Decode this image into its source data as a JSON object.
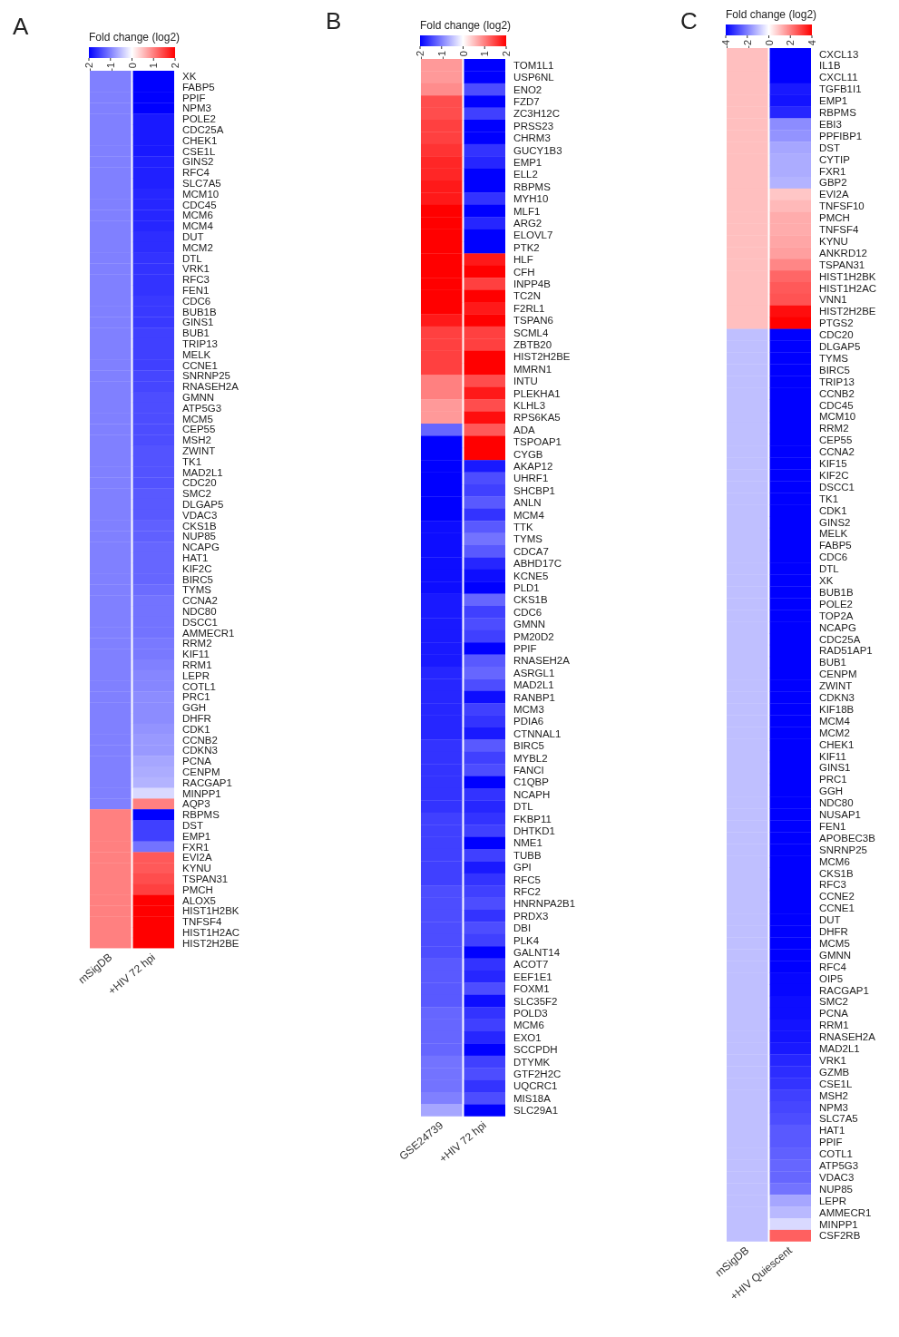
{
  "chart_data": [
    {
      "type": "heatmap",
      "title": "A",
      "clabel": "Fold change (log2)",
      "clim": [
        -2,
        2
      ],
      "cticks": [
        -2,
        -1,
        0,
        1,
        2
      ],
      "categories": [
        "mSigDB",
        "+HIV 72 hpi"
      ],
      "y_categories": [
        "XK",
        "FABP5",
        "PPIF",
        "NPM3",
        "POLE2",
        "CDC25A",
        "CHEK1",
        "CSE1L",
        "GINS2",
        "RFC4",
        "SLC7A5",
        "MCM10",
        "CDC45",
        "MCM6",
        "MCM4",
        "DUT",
        "MCM2",
        "DTL",
        "VRK1",
        "RFC3",
        "FEN1",
        "CDC6",
        "BUB1B",
        "GINS1",
        "BUB1",
        "TRIP13",
        "MELK",
        "CCNE1",
        "SNRNP25",
        "RNASEH2A",
        "GMNN",
        "ATP5G3",
        "MCM5",
        "CEP55",
        "MSH2",
        "ZWINT",
        "TK1",
        "MAD2L1",
        "CDC20",
        "SMC2",
        "DLGAP5",
        "VDAC3",
        "CKS1B",
        "NUP85",
        "NCAPG",
        "HAT1",
        "KIF2C",
        "BIRC5",
        "TYMS",
        "CCNA2",
        "NDC80",
        "DSCC1",
        "AMMECR1",
        "RRM2",
        "KIF11",
        "RRM1",
        "LEPR",
        "COTL1",
        "PRC1",
        "GGH",
        "DHFR",
        "CDK1",
        "CCNB2",
        "CDKN3",
        "PCNA",
        "CENPM",
        "RACGAP1",
        "MINPP1",
        "AQP3",
        "RBPMS",
        "DST",
        "EMP1",
        "FXR1",
        "EVI2A",
        "KYNU",
        "TSPAN31",
        "PMCH",
        "ALOX5",
        "HIST1H2BK",
        "TNFSF4",
        "HIST1H2AC",
        "HIST2H2BE"
      ],
      "cells": [
        [
          -1,
          -2
        ],
        [
          -1,
          -2
        ],
        [
          -1,
          -2
        ],
        [
          -1,
          -2
        ],
        [
          -1,
          -1.8
        ],
        [
          -1,
          -1.8
        ],
        [
          -1,
          -1.8
        ],
        [
          -1,
          -1.8
        ],
        [
          -1,
          -1.75
        ],
        [
          -1,
          -1.75
        ],
        [
          -1,
          -1.75
        ],
        [
          -1,
          -1.7
        ],
        [
          -1,
          -1.7
        ],
        [
          -1,
          -1.7
        ],
        [
          -1,
          -1.7
        ],
        [
          -1,
          -1.65
        ],
        [
          -1,
          -1.65
        ],
        [
          -1,
          -1.6
        ],
        [
          -1,
          -1.6
        ],
        [
          -1,
          -1.6
        ],
        [
          -1,
          -1.6
        ],
        [
          -1,
          -1.55
        ],
        [
          -1,
          -1.55
        ],
        [
          -1,
          -1.55
        ],
        [
          -1,
          -1.5
        ],
        [
          -1,
          -1.5
        ],
        [
          -1,
          -1.5
        ],
        [
          -1,
          -1.5
        ],
        [
          -1,
          -1.45
        ],
        [
          -1,
          -1.45
        ],
        [
          -1,
          -1.4
        ],
        [
          -1,
          -1.4
        ],
        [
          -1,
          -1.4
        ],
        [
          -1,
          -1.4
        ],
        [
          -1,
          -1.4
        ],
        [
          -1,
          -1.35
        ],
        [
          -1,
          -1.35
        ],
        [
          -1,
          -1.35
        ],
        [
          -1,
          -1.35
        ],
        [
          -1,
          -1.3
        ],
        [
          -1,
          -1.3
        ],
        [
          -1,
          -1.3
        ],
        [
          -1,
          -1.25
        ],
        [
          -1,
          -1.25
        ],
        [
          -1,
          -1.2
        ],
        [
          -1,
          -1.2
        ],
        [
          -1,
          -1.2
        ],
        [
          -1,
          -1.2
        ],
        [
          -1,
          -1.15
        ],
        [
          -1,
          -1.1
        ],
        [
          -1,
          -1.1
        ],
        [
          -1,
          -1.1
        ],
        [
          -1,
          -1.1
        ],
        [
          -1,
          -1.05
        ],
        [
          -1,
          -1.05
        ],
        [
          -1,
          -1
        ],
        [
          -1,
          -0.95
        ],
        [
          -1,
          -0.95
        ],
        [
          -1,
          -0.9
        ],
        [
          -1,
          -0.9
        ],
        [
          -1,
          -0.9
        ],
        [
          -1,
          -0.85
        ],
        [
          -1,
          -0.8
        ],
        [
          -1,
          -0.8
        ],
        [
          -1,
          -0.7
        ],
        [
          -1,
          -0.65
        ],
        [
          -1,
          -0.6
        ],
        [
          -1,
          -0.3
        ],
        [
          -1,
          1
        ],
        [
          1,
          -2
        ],
        [
          1,
          -1.5
        ],
        [
          1,
          -1.5
        ],
        [
          1,
          -1.1
        ],
        [
          1,
          1.3
        ],
        [
          1,
          1.3
        ],
        [
          1,
          1.4
        ],
        [
          1,
          1.5
        ],
        [
          1,
          2
        ],
        [
          1,
          2
        ],
        [
          1,
          2
        ],
        [
          1,
          2
        ],
        [
          1,
          2
        ]
      ]
    },
    {
      "type": "heatmap",
      "title": "B",
      "clabel": "Fold change (log2)",
      "clim": [
        -2,
        2
      ],
      "cticks": [
        -2,
        -1,
        0,
        1,
        2
      ],
      "categories": [
        "GSE24739",
        "+HIV 72 hpi"
      ],
      "y_categories": [
        "TOM1L1",
        "USP6NL",
        "ENO2",
        "FZD7",
        "ZC3H12C",
        "PRSS23",
        "CHRM3",
        "GUCY1B3",
        "EMP1",
        "ELL2",
        "RBPMS",
        "MYH10",
        "MLF1",
        "ARG2",
        "ELOVL7",
        "PTK2",
        "HLF",
        "CFH",
        "INPP4B",
        "TC2N",
        "F2RL1",
        "TSPAN6",
        "SCML4",
        "ZBTB20",
        "HIST2H2BE",
        "MMRN1",
        "INTU",
        "PLEKHA1",
        "KLHL3",
        "RPS6KA5",
        "ADA",
        "TSPOAP1",
        "CYGB",
        "AKAP12",
        "UHRF1",
        "SHCBP1",
        "ANLN",
        "MCM4",
        "TTK",
        "TYMS",
        "CDCA7",
        "ABHD17C",
        "KCNE5",
        "PLD1",
        "CKS1B",
        "CDC6",
        "GMNN",
        "PM20D2",
        "PPIF",
        "RNASEH2A",
        "ASRGL1",
        "MAD2L1",
        "RANBP1",
        "MCM3",
        "PDIA6",
        "CTNNAL1",
        "BIRC5",
        "MYBL2",
        "FANCI",
        "C1QBP",
        "NCAPH",
        "DTL",
        "FKBP11",
        "DHTKD1",
        "NME1",
        "TUBB",
        "GPI",
        "RFC5",
        "RFC2",
        "HNRNPA2B1",
        "PRDX3",
        "DBI",
        "PLK4",
        "GALNT14",
        "ACOT7",
        "EEF1E1",
        "FOXM1",
        "SLC35F2",
        "POLD3",
        "MCM6",
        "EXO1",
        "SCCPDH",
        "DTYMK",
        "GTF2H2C",
        "UQCRC1",
        "MIS18A",
        "SLC29A1"
      ],
      "cells": [
        [
          0.8,
          -2
        ],
        [
          0.8,
          -2
        ],
        [
          0.9,
          -1.4
        ],
        [
          1.4,
          -2
        ],
        [
          1.4,
          -1.5
        ],
        [
          1.5,
          -2
        ],
        [
          1.5,
          -2
        ],
        [
          1.6,
          -1.6
        ],
        [
          1.7,
          -1.7
        ],
        [
          1.7,
          -2
        ],
        [
          1.8,
          -2
        ],
        [
          1.8,
          -1.6
        ],
        [
          2,
          -2
        ],
        [
          2,
          -1.7
        ],
        [
          2,
          -2
        ],
        [
          2,
          -2
        ],
        [
          2,
          1.8
        ],
        [
          2,
          2
        ],
        [
          2,
          1.5
        ],
        [
          2,
          2
        ],
        [
          2,
          1.8
        ],
        [
          1.8,
          2
        ],
        [
          1.5,
          1.5
        ],
        [
          1.5,
          1.5
        ],
        [
          1.5,
          2
        ],
        [
          1.5,
          2
        ],
        [
          1,
          1.4
        ],
        [
          1,
          1.8
        ],
        [
          0.8,
          1.4
        ],
        [
          0.8,
          1.9
        ],
        [
          -1.2,
          1.3
        ],
        [
          -2,
          2
        ],
        [
          -2,
          2
        ],
        [
          -2,
          -1.8
        ],
        [
          -2,
          -1.4
        ],
        [
          -2,
          -1.5
        ],
        [
          -2,
          -1.3
        ],
        [
          -2,
          -1.6
        ],
        [
          -1.9,
          -1.3
        ],
        [
          -1.9,
          -1.1
        ],
        [
          -1.9,
          -1.3
        ],
        [
          -1.9,
          -1.7
        ],
        [
          -1.9,
          -1.9
        ],
        [
          -1.9,
          -2
        ],
        [
          -1.8,
          -1.2
        ],
        [
          -1.8,
          -1.5
        ],
        [
          -1.8,
          -1.4
        ],
        [
          -1.8,
          -1.5
        ],
        [
          -1.8,
          -2
        ],
        [
          -1.8,
          -1.3
        ],
        [
          -1.7,
          -1.2
        ],
        [
          -1.7,
          -1.4
        ],
        [
          -1.7,
          -1.9
        ],
        [
          -1.7,
          -1.5
        ],
        [
          -1.7,
          -1.6
        ],
        [
          -1.7,
          -1.8
        ],
        [
          -1.6,
          -1.3
        ],
        [
          -1.6,
          -1.5
        ],
        [
          -1.6,
          -1.4
        ],
        [
          -1.6,
          -2
        ],
        [
          -1.6,
          -1.6
        ],
        [
          -1.6,
          -1.7
        ],
        [
          -1.5,
          -1.6
        ],
        [
          -1.5,
          -1.5
        ],
        [
          -1.5,
          -2
        ],
        [
          -1.5,
          -1.5
        ],
        [
          -1.5,
          -1.8
        ],
        [
          -1.5,
          -1.6
        ],
        [
          -1.4,
          -1.5
        ],
        [
          -1.4,
          -1.4
        ],
        [
          -1.4,
          -1.6
        ],
        [
          -1.4,
          -1.4
        ],
        [
          -1.4,
          -1.5
        ],
        [
          -1.4,
          -2
        ],
        [
          -1.3,
          -1.6
        ],
        [
          -1.3,
          -1.7
        ],
        [
          -1.3,
          -1.4
        ],
        [
          -1.3,
          -1.9
        ],
        [
          -1.2,
          -1.6
        ],
        [
          -1.2,
          -1.5
        ],
        [
          -1.2,
          -1.7
        ],
        [
          -1.2,
          -2
        ],
        [
          -1.1,
          -1.5
        ],
        [
          -1.1,
          -1.4
        ],
        [
          -1.1,
          -1.6
        ],
        [
          -1,
          -1.4
        ],
        [
          -0.7,
          -2
        ]
      ]
    },
    {
      "type": "heatmap",
      "title": "C",
      "clabel": "Fold change (log2)",
      "clim": [
        -4,
        4
      ],
      "cticks": [
        -4,
        -2,
        0,
        2,
        4
      ],
      "categories": [
        "mSigDB",
        "+HIV Quiescent"
      ],
      "y_categories": [
        "CXCL13",
        "IL1B",
        "CXCL11",
        "TGFB1I1",
        "EMP1",
        "RBPMS",
        "EBI3",
        "PPFIBP1",
        "DST",
        "CYTIP",
        "FXR1",
        "GBP2",
        "EVI2A",
        "TNFSF10",
        "PMCH",
        "TNFSF4",
        "KYNU",
        "ANKRD12",
        "TSPAN31",
        "HIST1H2BK",
        "HIST1H2AC",
        "VNN1",
        "HIST2H2BE",
        "PTGS2",
        "CDC20",
        "DLGAP5",
        "TYMS",
        "BIRC5",
        "TRIP13",
        "CCNB2",
        "CDC45",
        "MCM10",
        "RRM2",
        "CEP55",
        "CCNA2",
        "KIF15",
        "KIF2C",
        "DSCC1",
        "TK1",
        "CDK1",
        "GINS2",
        "MELK",
        "FABP5",
        "CDC6",
        "DTL",
        "XK",
        "BUB1B",
        "POLE2",
        "TOP2A",
        "NCAPG",
        "CDC25A",
        "RAD51AP1",
        "BUB1",
        "CENPM",
        "ZWINT",
        "CDKN3",
        "KIF18B",
        "MCM4",
        "MCM2",
        "CHEK1",
        "KIF11",
        "GINS1",
        "PRC1",
        "GGH",
        "NDC80",
        "NUSAP1",
        "FEN1",
        "APOBEC3B",
        "SNRNP25",
        "MCM6",
        "CKS1B",
        "RFC3",
        "CCNE2",
        "CCNE1",
        "DUT",
        "DHFR",
        "MCM5",
        "GMNN",
        "RFC4",
        "OIP5",
        "RACGAP1",
        "SMC2",
        "PCNA",
        "RRM1",
        "RNASEH2A",
        "MAD2L1",
        "VRK1",
        "GZMB",
        "CSE1L",
        "MSH2",
        "NPM3",
        "SLC7A5",
        "HAT1",
        "PPIF",
        "COTL1",
        "ATP5G3",
        "VDAC3",
        "NUP85",
        "LEPR",
        "AMMECR1",
        "MINPP1",
        "CSF2RB"
      ],
      "cells": [
        [
          1,
          -4
        ],
        [
          1,
          -4
        ],
        [
          1,
          -4
        ],
        [
          1,
          -3.6
        ],
        [
          1,
          -3.7
        ],
        [
          1,
          -3.4
        ],
        [
          1,
          -1.8
        ],
        [
          1,
          -1.7
        ],
        [
          1,
          -1.4
        ],
        [
          1,
          -1.3
        ],
        [
          1,
          -1.3
        ],
        [
          1,
          -1.2
        ],
        [
          1,
          0.9
        ],
        [
          1,
          1.1
        ],
        [
          1,
          1.3
        ],
        [
          1,
          1.3
        ],
        [
          1,
          1.4
        ],
        [
          1,
          1.5
        ],
        [
          1,
          1.9
        ],
        [
          1,
          2.4
        ],
        [
          1,
          2.6
        ],
        [
          1,
          2.7
        ],
        [
          1,
          3.8
        ],
        [
          1,
          4
        ],
        [
          -1,
          -4
        ],
        [
          -1,
          -4
        ],
        [
          -1,
          -4
        ],
        [
          -1,
          -4
        ],
        [
          -1,
          -4
        ],
        [
          -1,
          -4
        ],
        [
          -1,
          -4
        ],
        [
          -1,
          -4
        ],
        [
          -1,
          -4
        ],
        [
          -1,
          -4
        ],
        [
          -1,
          -4
        ],
        [
          -1,
          -4
        ],
        [
          -1,
          -4
        ],
        [
          -1,
          -4
        ],
        [
          -1,
          -4
        ],
        [
          -1,
          -4
        ],
        [
          -1,
          -4
        ],
        [
          -1,
          -4
        ],
        [
          -1,
          -4
        ],
        [
          -1,
          -4
        ],
        [
          -1,
          -4
        ],
        [
          -1,
          -4
        ],
        [
          -1,
          -4
        ],
        [
          -1,
          -4
        ],
        [
          -1,
          -4
        ],
        [
          -1,
          -4
        ],
        [
          -1,
          -4
        ],
        [
          -1,
          -4
        ],
        [
          -1,
          -4
        ],
        [
          -1,
          -4
        ],
        [
          -1,
          -4
        ],
        [
          -1,
          -4
        ],
        [
          -1,
          -4
        ],
        [
          -1,
          -4
        ],
        [
          -1,
          -4
        ],
        [
          -1,
          -4
        ],
        [
          -1,
          -4
        ],
        [
          -1,
          -4
        ],
        [
          -1,
          -4
        ],
        [
          -1,
          -4
        ],
        [
          -1,
          -4
        ],
        [
          -1,
          -4
        ],
        [
          -1,
          -4
        ],
        [
          -1,
          -4
        ],
        [
          -1,
          -4
        ],
        [
          -1,
          -4
        ],
        [
          -1,
          -4
        ],
        [
          -1,
          -4
        ],
        [
          -1,
          -4
        ],
        [
          -1,
          -4
        ],
        [
          -1,
          -4
        ],
        [
          -1,
          -4
        ],
        [
          -1,
          -4
        ],
        [
          -1,
          -4
        ],
        [
          -1,
          -4
        ],
        [
          -1,
          -3.9
        ],
        [
          -1,
          -3.9
        ],
        [
          -1,
          -3.8
        ],
        [
          -1,
          -3.8
        ],
        [
          -1,
          -3.7
        ],
        [
          -1,
          -3.7
        ],
        [
          -1,
          -3.6
        ],
        [
          -1,
          -3.4
        ],
        [
          -1,
          -3.3
        ],
        [
          -1,
          -3.2
        ],
        [
          -1,
          -3
        ],
        [
          -1,
          -2.9
        ],
        [
          -1,
          -2.8
        ],
        [
          -1,
          -2.6
        ],
        [
          -1,
          -2.6
        ],
        [
          -1,
          -2.5
        ],
        [
          -1,
          -2.4
        ],
        [
          -1,
          -2.4
        ],
        [
          -1,
          -2.2
        ],
        [
          -1,
          -1.4
        ],
        [
          -1,
          -1.1
        ],
        [
          -1,
          -0.6
        ],
        [
          -1,
          2.5
        ]
      ]
    }
  ]
}
